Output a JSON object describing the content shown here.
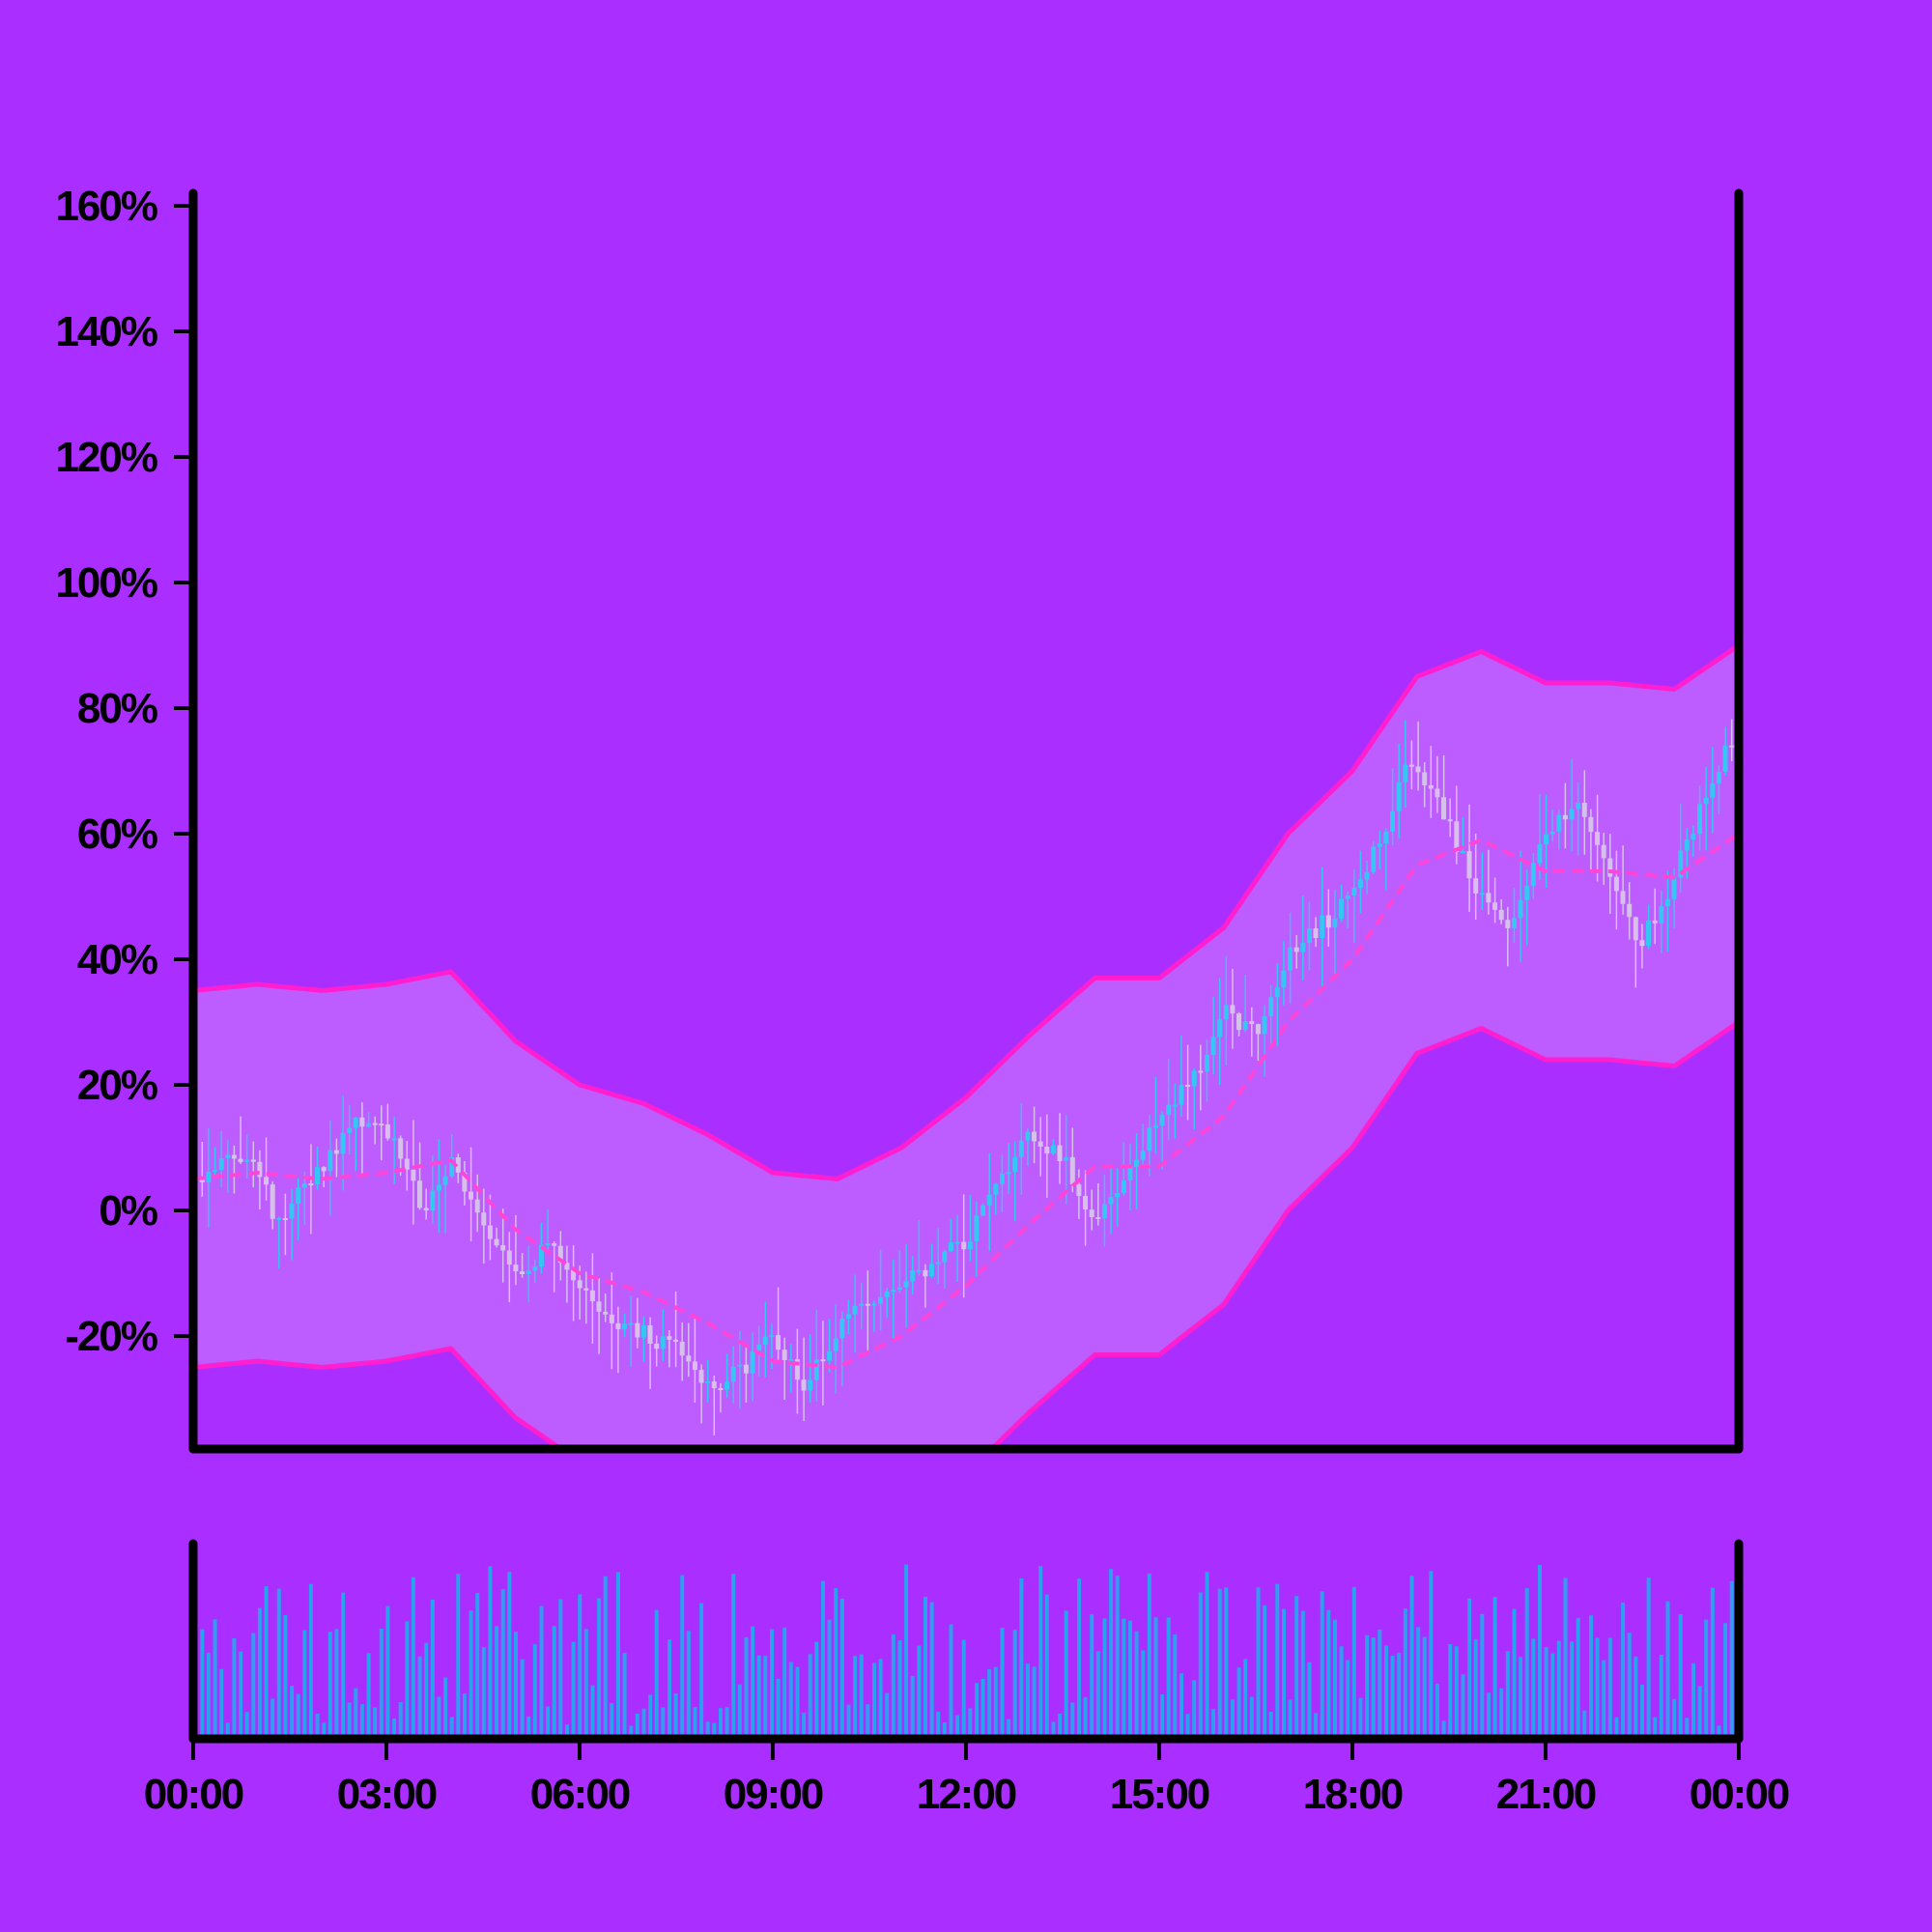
{
  "chart_data": {
    "type": "candlestick",
    "title": "",
    "xlabel": "",
    "ylabel": "",
    "x_ticks": [
      "00:00",
      "03:00",
      "06:00",
      "09:00",
      "12:00",
      "15:00",
      "18:00",
      "21:00",
      "00:00"
    ],
    "x_range_hours": [
      0,
      24
    ],
    "y_ticks": [
      "160%",
      "140%",
      "120%",
      "100%",
      "80%",
      "60%",
      "40%",
      "20%",
      "0%",
      "-20%"
    ],
    "y_tick_values": [
      160,
      140,
      120,
      100,
      80,
      60,
      40,
      20,
      0,
      -20
    ],
    "ylim": [
      -38,
      162
    ],
    "grid": false,
    "legend": "none",
    "price_anchors": {
      "hours": [
        0,
        0.5,
        1,
        1.2,
        1.5,
        2,
        2.5,
        3,
        3.5,
        4,
        4.5,
        5,
        5.5,
        6,
        6.5,
        7,
        7.5,
        8,
        8.5,
        9,
        9.5,
        10,
        10.5,
        11,
        11.5,
        12,
        12.5,
        13,
        13.5,
        14,
        14.5,
        15,
        15.5,
        16,
        16.5,
        17,
        17.5,
        18,
        18.5,
        18.8,
        19,
        19.5,
        20,
        20.5,
        21,
        21.5,
        22,
        22.5,
        23,
        23.5,
        24
      ],
      "values": [
        5,
        10,
        5,
        -2,
        2,
        8,
        15,
        12,
        0,
        8,
        -5,
        -10,
        -5,
        -12,
        -18,
        -20,
        -22,
        -28,
        -25,
        -20,
        -28,
        -18,
        -15,
        -12,
        -8,
        -5,
        5,
        12,
        8,
        -2,
        5,
        15,
        20,
        32,
        28,
        40,
        45,
        50,
        60,
        70,
        72,
        62,
        50,
        45,
        60,
        65,
        55,
        42,
        52,
        65,
        76
      ]
    },
    "ma_anchors": {
      "hours": [
        0,
        1,
        2,
        3,
        4,
        5,
        6,
        7,
        8,
        9,
        10,
        11,
        12,
        13,
        14,
        15,
        16,
        17,
        18,
        19,
        20,
        21,
        22,
        23,
        24
      ],
      "values": [
        5,
        6,
        5,
        6,
        8,
        -3,
        -10,
        -13,
        -18,
        -24,
        -25,
        -20,
        -12,
        -2,
        7,
        7,
        15,
        30,
        40,
        55,
        59,
        54,
        54,
        53,
        60
      ]
    },
    "band_half_width": 30,
    "volume_ylim": [
      0,
      30
    ],
    "colors": {
      "background": "#aa2eff",
      "band_fill": "#bd5cff",
      "band_line": "#ff1fd1",
      "ma_line": "#ff45d7",
      "candle_up": "#36c6f4",
      "candle_down": "#d8c0ec",
      "volume": "#2aa0ee",
      "axis": "#000000"
    }
  }
}
